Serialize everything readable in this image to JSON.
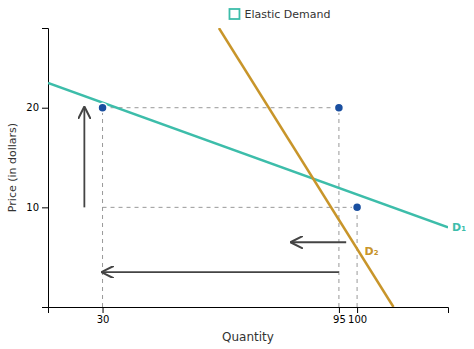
{
  "chart_data": {
    "type": "line",
    "xlabel": "Quantity",
    "ylabel": "Price (in dollars)",
    "xlim": [
      15,
      125
    ],
    "ylim": [
      0,
      28
    ],
    "xticks": [
      30,
      95,
      100
    ],
    "yticks": [
      10,
      20
    ],
    "grid": false,
    "series": [
      {
        "name": "D₁",
        "color": "#3dbdaa",
        "x": [
          15,
          125
        ],
        "values": [
          22.5,
          8
        ]
      },
      {
        "name": "D₂",
        "color": "#c8952a",
        "x": [
          62,
          110
        ],
        "values": [
          28,
          0
        ]
      }
    ],
    "reference_lines": [
      {
        "x": [
          30,
          95
        ],
        "y": [
          20,
          20
        ]
      },
      {
        "x": [
          30,
          100
        ],
        "y": [
          10,
          10
        ]
      },
      {
        "x": [
          30,
          30
        ],
        "y": [
          0,
          20
        ]
      },
      {
        "x": [
          95,
          95
        ],
        "y": [
          0,
          20
        ]
      },
      {
        "x": [
          100,
          100
        ],
        "y": [
          0,
          10
        ]
      }
    ],
    "points": {
      "x": [
        30,
        95,
        100
      ],
      "y": [
        20,
        20,
        10
      ],
      "color": "#1a4fa0"
    },
    "arrows": [
      {
        "x": [
          25,
          25
        ],
        "y": [
          10,
          20
        ]
      },
      {
        "x": [
          97,
          82
        ],
        "y": [
          6.5,
          6.5
        ]
      },
      {
        "x": [
          95,
          30
        ],
        "y": [
          3.5,
          3.5
        ]
      }
    ],
    "annotations": [
      {
        "text": "Elastic Demand",
        "color": "#3dbdaa"
      }
    ]
  }
}
